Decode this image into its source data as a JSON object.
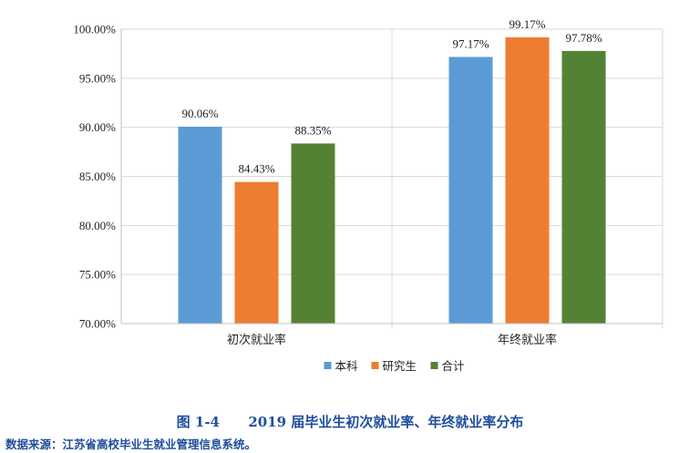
{
  "chart_data": {
    "type": "bar",
    "categories": [
      "初次就业率",
      "年终就业率"
    ],
    "series": [
      {
        "name": "本科",
        "color": "#5b9bd5",
        "values": [
          90.06,
          97.17
        ],
        "labels": [
          "90.06%",
          "97.17%"
        ]
      },
      {
        "name": "研究生",
        "color": "#ed7d31",
        "values": [
          84.43,
          99.17
        ],
        "labels": [
          "84.43%",
          "99.17%"
        ]
      },
      {
        "name": "合计",
        "color": "#548235",
        "values": [
          88.35,
          97.78
        ],
        "labels": [
          "88.35%",
          "97.78%"
        ]
      }
    ],
    "ylim": [
      70,
      100
    ],
    "yticks": [
      70,
      75,
      80,
      85,
      90,
      95,
      100
    ],
    "ytick_labels": [
      "70.00%",
      "75.00%",
      "80.00%",
      "85.00%",
      "90.00%",
      "95.00%",
      "100.00%"
    ],
    "grid": true,
    "legend_position": "bottom"
  },
  "caption": {
    "figure_no": "图 1-4",
    "title": "2019 届毕业生初次就业率、年终就业率分布"
  },
  "source_note": "数据来源：江苏省高校毕业生就业管理信息系统。"
}
